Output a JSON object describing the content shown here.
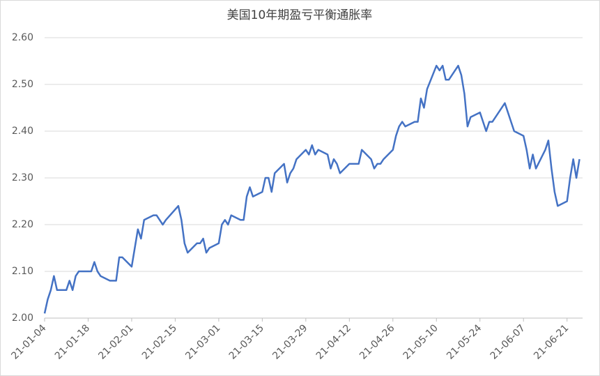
{
  "chart_data": {
    "type": "line",
    "title": "美国10年期盈亏平衡通胀率",
    "x": [
      "21-01-04",
      "21-01-05",
      "21-01-06",
      "21-01-07",
      "21-01-08",
      "21-01-11",
      "21-01-12",
      "21-01-13",
      "21-01-14",
      "21-01-15",
      "21-01-19",
      "21-01-20",
      "21-01-21",
      "21-01-22",
      "21-01-25",
      "21-01-26",
      "21-01-27",
      "21-01-28",
      "21-01-29",
      "21-02-01",
      "21-02-02",
      "21-02-03",
      "21-02-04",
      "21-02-05",
      "21-02-08",
      "21-02-09",
      "21-02-10",
      "21-02-11",
      "21-02-12",
      "21-02-16",
      "21-02-17",
      "21-02-18",
      "21-02-19",
      "21-02-22",
      "21-02-23",
      "21-02-24",
      "21-02-25",
      "21-02-26",
      "21-03-01",
      "21-03-02",
      "21-03-03",
      "21-03-04",
      "21-03-05",
      "21-03-08",
      "21-03-09",
      "21-03-10",
      "21-03-11",
      "21-03-12",
      "21-03-15",
      "21-03-16",
      "21-03-17",
      "21-03-18",
      "21-03-19",
      "21-03-22",
      "21-03-23",
      "21-03-24",
      "21-03-25",
      "21-03-26",
      "21-03-29",
      "21-03-30",
      "21-03-31",
      "21-04-01",
      "21-04-02",
      "21-04-05",
      "21-04-06",
      "21-04-07",
      "21-04-08",
      "21-04-09",
      "21-04-12",
      "21-04-13",
      "21-04-14",
      "21-04-15",
      "21-04-16",
      "21-04-19",
      "21-04-20",
      "21-04-21",
      "21-04-22",
      "21-04-23",
      "21-04-26",
      "21-04-27",
      "21-04-28",
      "21-04-29",
      "21-04-30",
      "21-05-03",
      "21-05-04",
      "21-05-05",
      "21-05-06",
      "21-05-07",
      "21-05-10",
      "21-05-11",
      "21-05-12",
      "21-05-13",
      "21-05-14",
      "21-05-17",
      "21-05-18",
      "21-05-19",
      "21-05-20",
      "21-05-21",
      "21-05-24",
      "21-05-25",
      "21-05-26",
      "21-05-27",
      "21-05-28",
      "21-06-01",
      "21-06-02",
      "21-06-03",
      "21-06-04",
      "21-06-07",
      "21-06-08",
      "21-06-09",
      "21-06-10",
      "21-06-11",
      "21-06-14",
      "21-06-15",
      "21-06-16",
      "21-06-17",
      "21-06-18",
      "21-06-21",
      "21-06-22",
      "21-06-23",
      "21-06-24",
      "21-06-25"
    ],
    "series": [
      {
        "color": "#4472c4",
        "values": [
          2.01,
          2.04,
          2.06,
          2.09,
          2.06,
          2.06,
          2.08,
          2.06,
          2.09,
          2.1,
          2.1,
          2.12,
          2.1,
          2.09,
          2.08,
          2.08,
          2.08,
          2.13,
          2.13,
          2.11,
          2.15,
          2.19,
          2.17,
          2.21,
          2.22,
          2.22,
          2.21,
          2.2,
          2.21,
          2.24,
          2.21,
          2.16,
          2.14,
          2.16,
          2.16,
          2.17,
          2.14,
          2.15,
          2.16,
          2.2,
          2.21,
          2.2,
          2.22,
          2.21,
          2.21,
          2.26,
          2.28,
          2.26,
          2.27,
          2.3,
          2.3,
          2.27,
          2.31,
          2.33,
          2.29,
          2.31,
          2.32,
          2.34,
          2.36,
          2.35,
          2.37,
          2.35,
          2.36,
          2.35,
          2.32,
          2.34,
          2.33,
          2.31,
          2.33,
          2.33,
          2.33,
          2.33,
          2.36,
          2.34,
          2.32,
          2.33,
          2.33,
          2.34,
          2.36,
          2.39,
          2.41,
          2.42,
          2.41,
          2.42,
          2.42,
          2.47,
          2.45,
          2.49,
          2.54,
          2.53,
          2.54,
          2.51,
          2.51,
          2.54,
          2.52,
          2.48,
          2.41,
          2.43,
          2.44,
          2.42,
          2.4,
          2.42,
          2.42,
          2.46,
          2.44,
          2.42,
          2.4,
          2.39,
          2.36,
          2.32,
          2.35,
          2.32,
          2.36,
          2.38,
          2.32,
          2.27,
          2.24,
          2.25,
          2.3,
          2.34,
          2.3,
          2.34
        ]
      }
    ],
    "xlim": [
      "21-01-04",
      "21-06-26"
    ],
    "xticks": [
      "21-01-04",
      "21-01-18",
      "21-02-01",
      "21-02-15",
      "21-03-01",
      "21-03-15",
      "21-03-29",
      "21-04-12",
      "21-04-26",
      "21-05-10",
      "21-05-24",
      "21-06-07",
      "21-06-21"
    ],
    "ylim": [
      2.0,
      2.6
    ],
    "yticks": [
      {
        "value": 2.0,
        "label": "2.00"
      },
      {
        "value": 2.1,
        "label": "2.10"
      },
      {
        "value": 2.2,
        "label": "2.20"
      },
      {
        "value": 2.3,
        "label": "2.30"
      },
      {
        "value": 2.4,
        "label": "2.40"
      },
      {
        "value": 2.5,
        "label": "2.50"
      },
      {
        "value": 2.6,
        "label": "2.60"
      }
    ],
    "grid": true
  }
}
